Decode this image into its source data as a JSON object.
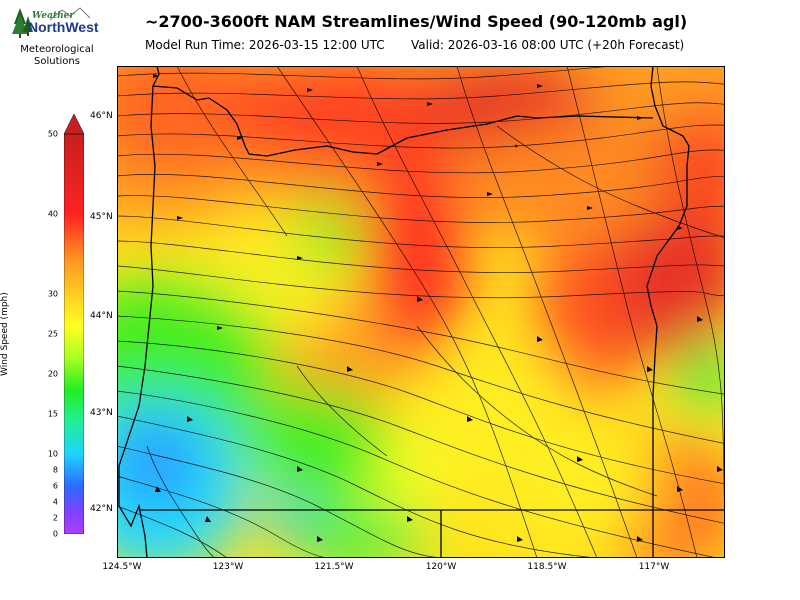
{
  "header": {
    "title": "~2700-3600ft NAM Streamlines/Wind Speed (90-120mb agl)",
    "model_run": "Model Run Time: 2026-03-15 12:00 UTC",
    "valid": "Valid: 2026-03-16 08:00 UTC  (+20h Forecast)"
  },
  "logo": {
    "brand_top": "Weather",
    "brand_main": "NorthWest",
    "line1": "Meteorological",
    "line2": "Solutions"
  },
  "map": {
    "lat_labels": [
      "46°N",
      "45°N",
      "44°N",
      "43°N",
      "42°N"
    ],
    "lon_labels": [
      "124.5°W",
      "123°W",
      "121.5°W",
      "120°W",
      "118.5°W",
      "117°W"
    ]
  },
  "colorbar": {
    "label": "Wind Speed (mph)",
    "ticks": [
      "50",
      "40",
      "30",
      "25",
      "20",
      "15",
      "10",
      "8",
      "6",
      "4",
      "2",
      "0"
    ],
    "colors": {
      "purple": "#9b30ff",
      "blue": "#2a6cff",
      "cyan": "#1fd3ff",
      "green": "#22ee22",
      "yellow": "#ffff22",
      "orange": "#ff9a22",
      "red": "#ff2222",
      "dark_red": "#c62020"
    }
  }
}
